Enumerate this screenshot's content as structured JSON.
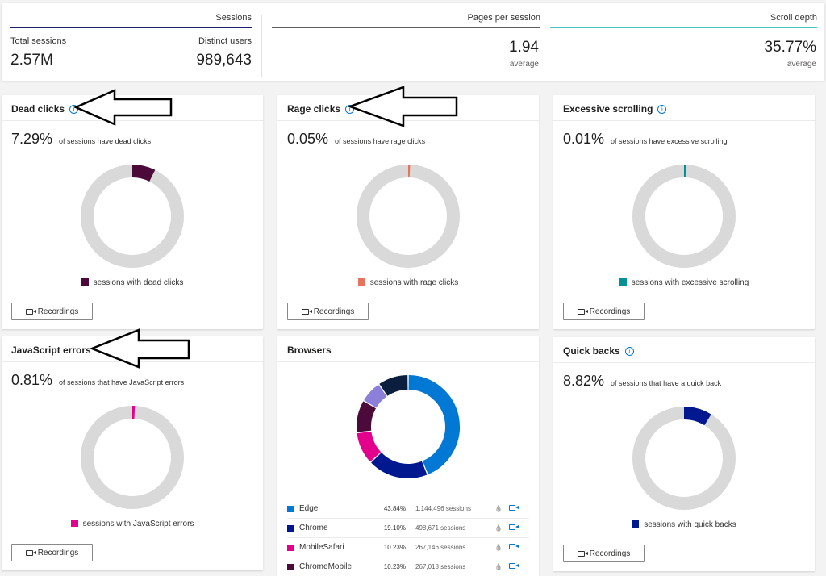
{
  "summary": {
    "sessions": {
      "title": "Sessions",
      "total_label": "Total sessions",
      "total_value": "2.57M",
      "distinct_label": "Distinct users",
      "distinct_value": "989,643",
      "line_color": "#1b1f6e"
    },
    "pages": {
      "title": "Pages per session",
      "value": "1.94",
      "sub": "average",
      "line_color": "#605e5c"
    },
    "scroll": {
      "title": "Scroll depth",
      "value": "35.77%",
      "sub": "average",
      "line_color": "#45c4c4"
    }
  },
  "cards": {
    "dead": {
      "title": "Dead clicks",
      "pct": "7.29%",
      "desc": "of sessions have dead clicks",
      "legend": "sessions with dead clicks",
      "color": "#4b0a3a",
      "fraction": 0.0729,
      "button": "Recordings"
    },
    "rage": {
      "title": "Rage clicks",
      "pct": "0.05%",
      "desc": "of sessions have rage clicks",
      "legend": "sessions with rage clicks",
      "color": "#e8735d",
      "fraction": 0.0005,
      "button": "Recordings"
    },
    "scrolling": {
      "title": "Excessive scrolling",
      "pct": "0.01%",
      "desc": "of sessions have excessive scrolling",
      "legend": "sessions with excessive scrolling",
      "color": "#038f96",
      "fraction": 0.0001,
      "button": "Recordings"
    },
    "js": {
      "title": "JavaScript errors",
      "pct": "0.81%",
      "desc": "of sessions that have JavaScript errors",
      "legend": "sessions with JavaScript errors",
      "color": "#e3008c",
      "fraction": 0.0081,
      "button": "Recordings"
    },
    "quick": {
      "title": "Quick backs",
      "pct": "8.82%",
      "desc": "of sessions that have a quick back",
      "legend": "sessions with quick backs",
      "color": "#00188f",
      "fraction": 0.0882,
      "button": "Recordings"
    }
  },
  "browsers": {
    "title": "Browsers",
    "rows": [
      {
        "name": "Edge",
        "pct": "43.84%",
        "sessions": "1,144,496 sessions",
        "color": "#0078d4"
      },
      {
        "name": "Chrome",
        "pct": "19.10%",
        "sessions": "498,671 sessions",
        "color": "#00188f"
      },
      {
        "name": "MobileSafari",
        "pct": "10.23%",
        "sessions": "267,146 sessions",
        "color": "#e3008c"
      },
      {
        "name": "ChromeMobile",
        "pct": "10.23%",
        "sessions": "267,018 sessions",
        "color": "#4b0a3a"
      }
    ],
    "remaining_segments": [
      {
        "color": "#8b7fd9",
        "fraction": 0.07
      },
      {
        "color": "#0b1e3e",
        "fraction": 0.096
      }
    ]
  },
  "icons": {
    "info": "info-icon",
    "recording": "video-camera-icon",
    "heatmap": "flame-icon"
  }
}
